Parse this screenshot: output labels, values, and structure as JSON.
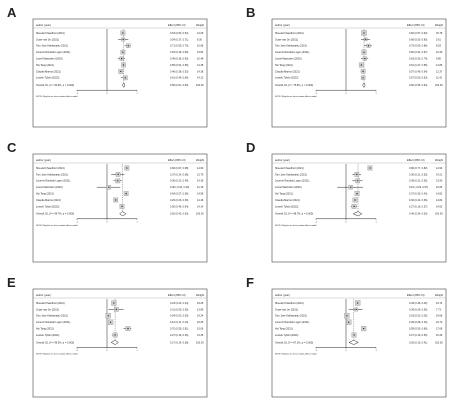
{
  "chart_data": [
    {
      "panel": "A",
      "type": "forest",
      "header": {
        "study": "author (year)",
        "effect": "Effect (95% CI)",
        "weight": "Weight"
      },
      "ticks": [
        "-1",
        "0",
        "1"
      ],
      "xlim": [
        -1,
        1
      ],
      "note": "NOTE: Weights are from random-effects model",
      "studies": [
        {
          "label": "Sheetal Chaudhuri (2021)",
          "es": 0.53,
          "lo": 0.5,
          "hi": 0.54,
          "ci": "0.53 (0.50, 0.54)",
          "weight": "14.09"
        },
        {
          "label": "Guan-nan Jin (2021)",
          "es": 0.54,
          "lo": 0.37,
          "hi": 0.71,
          "ci": "0.54 (0.37, 0.71)",
          "weight": "8.30"
        },
        {
          "label": "Tom Jose Kakkanattu (2021)",
          "es": 0.71,
          "lo": 0.59,
          "hi": 0.79,
          "ci": "0.71 (0.59, 0.79)",
          "weight": "10.68"
        },
        {
          "label": "Jocemir Ronaldo Lugon (2021)",
          "es": 0.53,
          "lo": 0.46,
          "hi": 0.59,
          "ci": "0.53 (0.46, 0.59)",
          "weight": "13.84"
        },
        {
          "label": "Lionel Mazzoleni (2020)",
          "es": 0.49,
          "lo": 0.36,
          "hi": 0.6,
          "ci": "0.49 (0.36, 0.60)",
          "weight": "10.48"
        },
        {
          "label": "Hui Tang (2021)",
          "es": 0.55,
          "lo": 0.51,
          "hi": 0.59,
          "ci": "0.55 (0.51, 0.59)",
          "weight": "14.38"
        },
        {
          "label": "Claudia Marino (2021)",
          "es": 0.46,
          "lo": 0.38,
          "hi": 0.53,
          "ci": "0.46 (0.38, 0.53)",
          "weight": "14.38"
        },
        {
          "label": "Leszek Tylicki (2022)",
          "es": 0.61,
          "lo": 0.46,
          "hi": 0.66,
          "ci": "0.61 (0.46, 0.66)",
          "weight": "14.12"
        }
      ],
      "overall": {
        "label": "Overall, DL (I² = 90.9%, p = 0.000)",
        "es": 0.56,
        "lo": 0.51,
        "hi": 0.6,
        "ci": "0.56 (0.51, 0.60)",
        "weight": "100.00"
      }
    },
    {
      "panel": "B",
      "type": "forest",
      "header": {
        "study": "author (year)",
        "effect": "Effect (95% CI)",
        "weight": "Weight"
      },
      "ticks": [
        "-1",
        "0",
        "1"
      ],
      "xlim": [
        -1,
        1
      ],
      "note": "NOTE: Weights are from random-effects model",
      "studies": [
        {
          "label": "Sheetal Chaudhuri (2021)",
          "es": 0.6,
          "lo": 0.57,
          "hi": 0.63,
          "ci": "0.60 (0.57, 0.63)",
          "weight": "20.78"
        },
        {
          "label": "Guan-nan Jin (2021)",
          "es": 0.66,
          "lo": 0.5,
          "hi": 0.8,
          "ci": "0.66 (0.50, 0.80)",
          "weight": "5.61"
        },
        {
          "label": "Tom Jose Kakkanattu (2021)",
          "es": 0.75,
          "lo": 0.6,
          "hi": 0.86,
          "ci": "0.75 (0.60, 0.86)",
          "weight": "8.53"
        },
        {
          "label": "Jocemir Ronaldo Lugon (2021)",
          "es": 0.6,
          "lo": 0.52,
          "hi": 0.67,
          "ci": "0.60 (0.52, 0.67)",
          "weight": "16.40"
        },
        {
          "label": "Lionel Mazzoleni (2020)",
          "es": 0.63,
          "lo": 0.5,
          "hi": 0.74,
          "ci": "0.63 (0.50, 0.74)",
          "weight": "9.85"
        },
        {
          "label": "Hui Tang (2021)",
          "es": 0.51,
          "lo": 0.47,
          "hi": 0.55,
          "ci": "0.51 (0.47, 0.55)",
          "weight": "14.86"
        },
        {
          "label": "Claudia Marino (2021)",
          "es": 0.57,
          "lo": 0.49,
          "hi": 0.64,
          "ci": "0.57 (0.49, 0.64)",
          "weight": "12.37"
        },
        {
          "label": "Leszek Tylicki (2022)",
          "es": 0.57,
          "lo": 0.5,
          "hi": 0.63,
          "ci": "0.57 (0.50, 0.63)",
          "weight": "11.42"
        }
      ],
      "overall": {
        "label": "Overall, DL (I² = 75.6%, p = 0.000)",
        "es": 0.6,
        "lo": 0.55,
        "hi": 0.64,
        "ci": "0.60 (0.55, 0.64)",
        "weight": "100.00"
      }
    },
    {
      "panel": "C",
      "type": "forest",
      "header": {
        "study": "author (year)",
        "effect": "Effect (95% CI)",
        "weight": "Weight"
      },
      "ticks": [
        "-1",
        "0",
        "1"
      ],
      "xlim": [
        -1,
        1
      ],
      "note": "NOTE: Weights are from random-effects model",
      "studies": [
        {
          "label": "Sheetal Chaudhuri (2021)",
          "es": 0.66,
          "lo": 0.67,
          "hi": 0.68,
          "ci": "0.66 (0.67, 0.68)",
          "weight": "14.60"
        },
        {
          "label": "Tom Jose Kakkanattu (2021)",
          "es": 0.37,
          "lo": 0.14,
          "hi": 0.58,
          "ci": "0.37 (0.14, 0.58)",
          "weight": "13.79"
        },
        {
          "label": "Jocemir Ronaldo Lugon (2021)",
          "es": 0.36,
          "lo": 0.22,
          "hi": 0.49,
          "ci": "0.36 (0.22, 0.49)",
          "weight": "14.39"
        },
        {
          "label": "Lionel Mazzoleni (2020)",
          "es": 0.06,
          "lo": -0.34,
          "hi": 0.44,
          "ci": "0.06 (-0.34, 0.44)",
          "weight": "12.18"
        },
        {
          "label": "Hui Tang (2021)",
          "es": 0.64,
          "lo": 0.57,
          "hi": 0.69,
          "ci": "0.64 (0.57, 0.69)",
          "weight": "14.58"
        },
        {
          "label": "Claudia Marino (2021)",
          "es": 0.29,
          "lo": 0.23,
          "hi": 0.36,
          "ci": "0.29 (0.23, 0.36)",
          "weight": "14.46"
        },
        {
          "label": "Leszek Tylicki (2022)",
          "es": 0.5,
          "lo": 0.46,
          "hi": 0.54,
          "ci": "0.50 (0.46, 0.54)",
          "weight": "14.14"
        }
      ],
      "overall": {
        "label": "Overall, DL (I² = 99.7%, p = 0.000)",
        "es": 0.52,
        "lo": 0.42,
        "hi": 0.63,
        "ci": "0.52 (0.42, 0.63)",
        "weight": "100.00"
      }
    },
    {
      "panel": "D",
      "type": "forest",
      "header": {
        "study": "author (year)",
        "effect": "Effect (95% CI)",
        "weight": "Weight"
      },
      "ticks": [
        "-1",
        "0",
        "1"
      ],
      "xlim": [
        -1,
        1
      ],
      "note": "NOTE: Weights are from random-effects model",
      "studies": [
        {
          "label": "Sheetal Chaudhuri (2021)",
          "es": 0.8,
          "lo": 0.77,
          "hi": 0.82,
          "ci": "0.80 (0.77, 0.82)",
          "weight": "14.93"
        },
        {
          "label": "Tom Jose Kakkanattu (2021)",
          "es": 0.36,
          "lo": 0.21,
          "hi": 0.5,
          "ci": "0.36 (0.21, 0.50)",
          "weight": "14.21"
        },
        {
          "label": "Jocemir Ronaldo Lugon (2021)",
          "es": 0.39,
          "lo": 0.21,
          "hi": 0.55,
          "ci": "0.39 (0.21, 0.55)",
          "weight": "13.90"
        },
        {
          "label": "Lionel Mazzoleni (2020)",
          "es": 0.16,
          "lo": -0.29,
          "hi": 0.57,
          "ci": "0.16 (-0.29, 0.57)",
          "weight": "10.65"
        },
        {
          "label": "Hui Tang (2021)",
          "es": 0.37,
          "lo": 0.3,
          "hi": 0.43,
          "ci": "0.37 (0.30, 0.43)",
          "weight": "14.82"
        },
        {
          "label": "Claudia Marino (2021)",
          "es": 0.3,
          "lo": 0.24,
          "hi": 0.36,
          "ci": "0.30 (0.24, 0.36)",
          "weight": "14.84"
        },
        {
          "label": "Leszek Tylicki (2022)",
          "es": 0.27,
          "lo": 0.16,
          "hi": 0.37,
          "ci": "0.27 (0.16, 0.37)",
          "weight": "14.63"
        }
      ],
      "overall": {
        "label": "Overall, DL (I² = 98.7%, p = 0.000)",
        "es": 0.4,
        "lo": 0.24,
        "hi": 0.53,
        "ci": "0.40 (0.24, 0.53)",
        "weight": "100.00"
      }
    },
    {
      "panel": "E",
      "type": "forest",
      "header": {
        "study": "author (year)",
        "effect": "Effect (95% CI)",
        "weight": "Weight"
      },
      "ticks": [
        "-1",
        "0",
        "1"
      ],
      "xlim": [
        -1,
        1
      ],
      "note": "NOTE: Weights are from random-effects model",
      "studies": [
        {
          "label": "Sheetal Chaudhuri (2021)",
          "es": 0.23,
          "lo": 0.22,
          "hi": 0.24,
          "ci": "0.23 (0.22, 0.24)",
          "weight": "19.25"
        },
        {
          "label": "Guan-nan Jin (2021)",
          "es": 0.31,
          "lo": 0.05,
          "hi": 0.55,
          "ci": "0.31 (0.05, 0.55)",
          "weight": "13.85"
        },
        {
          "label": "Tom Jose Kakkanattu (2021)",
          "es": 0.04,
          "lo": 0.02,
          "hi": 0.05,
          "ci": "0.04 (0.02, 0.05)",
          "weight": "19.24"
        },
        {
          "label": "Jocemir Ronaldo Lugon (2021)",
          "es": 0.12,
          "lo": 0.11,
          "hi": 0.13,
          "ci": "0.12 (0.11, 0.13)",
          "weight": "19.25"
        },
        {
          "label": "Hui Tang (2021)",
          "es": 0.7,
          "lo": 0.55,
          "hi": 0.81,
          "ci": "0.70 (0.55, 0.81)",
          "weight": "15.06"
        },
        {
          "label": "Leszek Tylicki (2022)",
          "es": 0.27,
          "lo": 0.16,
          "hi": 0.36,
          "ci": "0.27 (0.16, 0.36)",
          "weight": "13.35"
        }
      ],
      "overall": {
        "label": "Overall, DL (I² = 99.3%, p = 0.000)",
        "es": 0.27,
        "lo": 0.14,
        "hi": 0.38,
        "ci": "0.27 (0.14, 0.38)",
        "weight": "100.00"
      }
    },
    {
      "panel": "F",
      "type": "forest",
      "header": {
        "study": "author (year)",
        "effect": "Effect (95% CI)",
        "weight": "Weight"
      },
      "ticks": [
        "-1",
        "0",
        "1"
      ],
      "xlim": [
        -1,
        1
      ],
      "note": "NOTE: Weights are from random-effects model",
      "studies": [
        {
          "label": "Sheetal Chaudhuri (2021)",
          "es": 0.39,
          "lo": 0.38,
          "hi": 0.4,
          "ci": "0.39 (0.38, 0.40)",
          "weight": "19.74"
        },
        {
          "label": "Guan-nan Jin (2021)",
          "es": 0.34,
          "lo": 0.09,
          "hi": 0.55,
          "ci": "0.34 (0.09, 0.55)",
          "weight": "7.73"
        },
        {
          "label": "Tom Jose Kakkanattu (2021)",
          "es": 0.03,
          "lo": 0.02,
          "hi": 0.05,
          "ci": "0.03 (0.02, 0.05)",
          "weight": "19.68"
        },
        {
          "label": "Jocemir Ronaldo Lugon (2021)",
          "es": 0.09,
          "lo": 0.08,
          "hi": 0.1,
          "ci": "0.09 (0.08, 0.10)",
          "weight": "19.70"
        },
        {
          "label": "Hui Tang (2021)",
          "es": 0.59,
          "lo": 0.53,
          "hi": 0.66,
          "ci": "0.59 (0.53, 0.66)",
          "weight": "17.66"
        },
        {
          "label": "Leszek Tylicki (2022)",
          "es": 0.27,
          "lo": 0.19,
          "hi": 0.35,
          "ci": "0.27 (0.19, 0.35)",
          "weight": "15.49"
        }
      ],
      "overall": {
        "label": "Overall, DL (I² = 97.1%, p = 0.000)",
        "es": 0.26,
        "lo": 0.1,
        "hi": 0.41,
        "ci": "0.26 (0.10, 0.41)",
        "weight": "100.00"
      }
    }
  ]
}
